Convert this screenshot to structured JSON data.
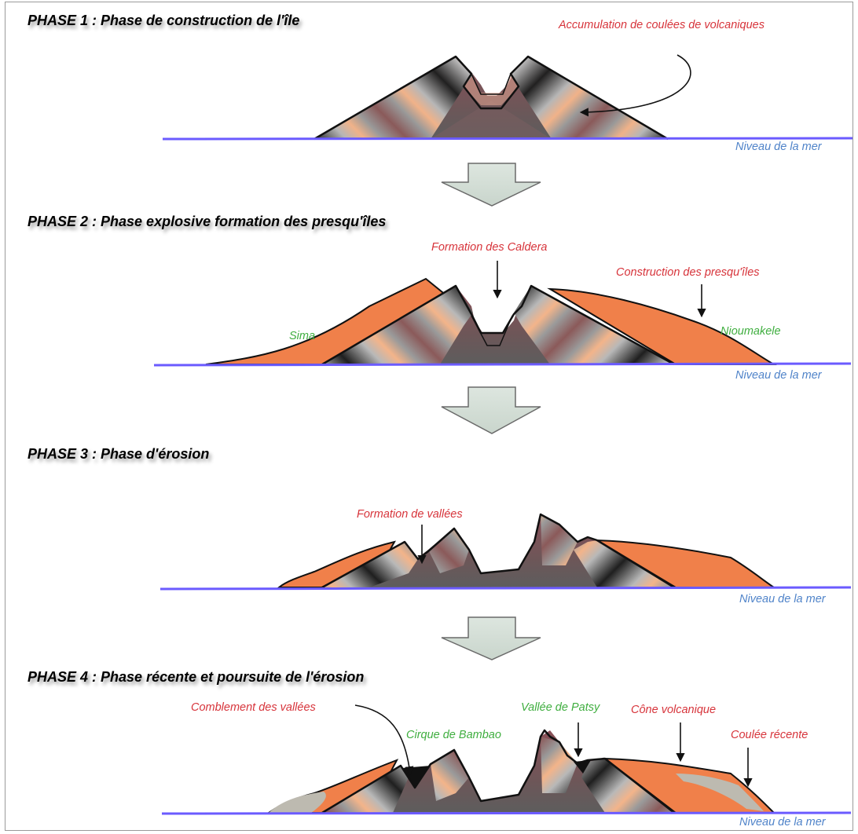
{
  "phases": [
    {
      "title": "PHASE 1 : Phase de construction de l'île",
      "annotations": {
        "accumulation": "Accumulation de coulées de volcaniques"
      },
      "sea_level": "Niveau de la mer"
    },
    {
      "title": "PHASE 2 : Phase explosive formation des presqu'îles",
      "annotations": {
        "caldera": "Formation des Caldera",
        "presquiles": "Construction des presqu'îles"
      },
      "places": {
        "sima": "Sima",
        "nioumakele": "Nioumakele"
      },
      "sea_level": "Niveau de la mer"
    },
    {
      "title": "PHASE 3 : Phase d'érosion",
      "annotations": {
        "vallees": "Formation de vallées"
      },
      "sea_level": "Niveau de la mer"
    },
    {
      "title": "PHASE 4 : Phase récente et poursuite de l'érosion",
      "annotations": {
        "comblement": "Comblement des vallées",
        "cone": "Cône volcanique",
        "coulee": "Coulée récente"
      },
      "places": {
        "bambao": "Cirque de Bambao",
        "patsy": "Vallée de Patsy"
      },
      "sea_level": "Niveau de la mer"
    }
  ],
  "colors": {
    "annotation": "#d7343b",
    "place_name": "#3fae3f",
    "sea_level": "#4f83c9",
    "sea_line": "#6b5bff",
    "peninsula": "#f0804a",
    "arrow_fill": "#d5e0d8",
    "recent_flow": "#bdbab0"
  }
}
